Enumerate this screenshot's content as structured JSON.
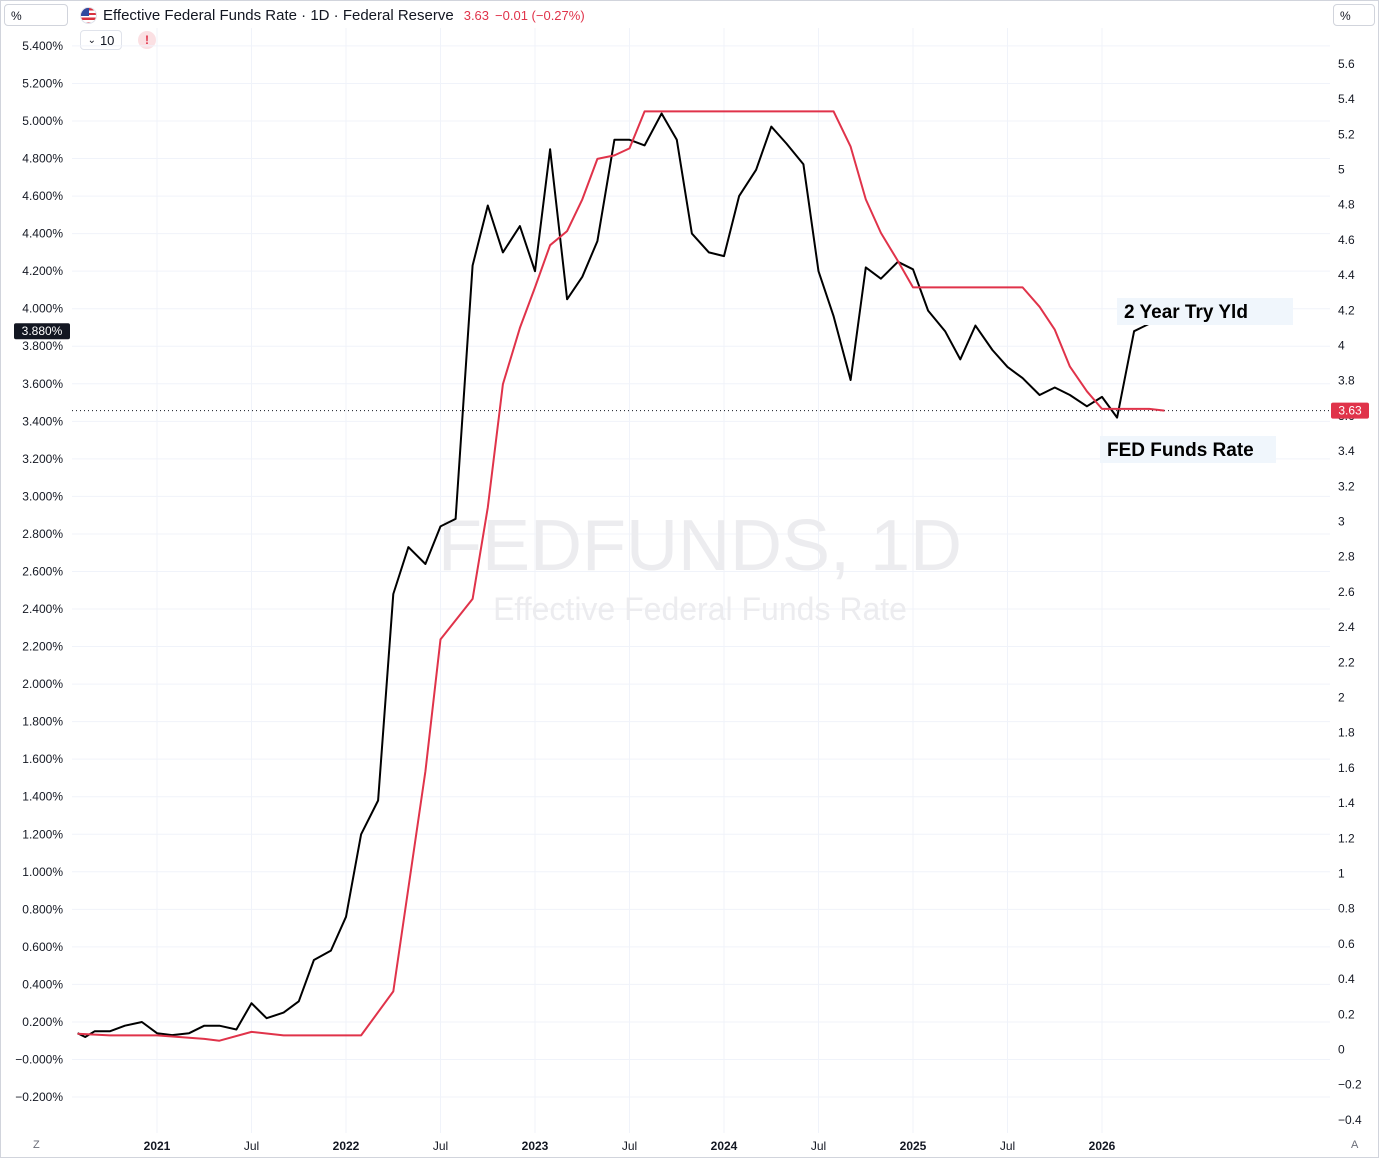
{
  "header": {
    "left_unit": "%",
    "right_unit": "%",
    "title": "Effective Federal Funds Rate · 1D · Federal Reserve",
    "last_value": "3.63",
    "change": "−0.01 (−0.27%)",
    "flag_icon": "us-flag-icon",
    "indicator_button_label": "10",
    "warning_glyph": "!"
  },
  "corners": {
    "bottom_left": "Z",
    "bottom_right": "A"
  },
  "colors": {
    "fed_funds_line": "#e0334a",
    "treasury_line": "#000000",
    "badge_left": "#131722",
    "badge_right": "#e0334a"
  },
  "chart_data": {
    "type": "line",
    "watermark": {
      "symbol": "FEDFUNDS, 1D",
      "description": "Effective Federal Funds Rate"
    },
    "x_ticks": [
      {
        "label": "2021",
        "t": 2021.0,
        "bold": true
      },
      {
        "label": "Jul",
        "t": 2021.5,
        "bold": false
      },
      {
        "label": "2022",
        "t": 2022.0,
        "bold": true
      },
      {
        "label": "Jul",
        "t": 2022.5,
        "bold": false
      },
      {
        "label": "2023",
        "t": 2023.0,
        "bold": true
      },
      {
        "label": "Jul",
        "t": 2023.5,
        "bold": false
      },
      {
        "label": "2024",
        "t": 2024.0,
        "bold": true
      },
      {
        "label": "Jul",
        "t": 2024.5,
        "bold": false
      },
      {
        "label": "2025",
        "t": 2025.0,
        "bold": true
      },
      {
        "label": "Jul",
        "t": 2025.5,
        "bold": false
      },
      {
        "label": "2026",
        "t": 2026.0,
        "bold": true
      }
    ],
    "left_axis": {
      "ylim": [
        -0.2,
        5.4
      ],
      "ticks": [
        "5.400%",
        "5.200%",
        "5.000%",
        "4.800%",
        "4.600%",
        "4.400%",
        "4.200%",
        "4.000%",
        "3.800%",
        "3.600%",
        "3.400%",
        "3.200%",
        "3.000%",
        "2.800%",
        "2.600%",
        "2.400%",
        "2.200%",
        "2.000%",
        "1.800%",
        "1.600%",
        "1.400%",
        "1.200%",
        "1.000%",
        "0.800%",
        "0.600%",
        "0.400%",
        "0.200%",
        "−0.000%",
        "−0.200%"
      ],
      "tick_values": [
        5.4,
        5.2,
        5.0,
        4.8,
        4.6,
        4.4,
        4.2,
        4.0,
        3.8,
        3.6,
        3.4,
        3.2,
        3.0,
        2.8,
        2.6,
        2.4,
        2.2,
        2.0,
        1.8,
        1.6,
        1.4,
        1.2,
        1.0,
        0.8,
        0.6,
        0.4,
        0.2,
        0.0,
        -0.2
      ],
      "badge": "3.880%",
      "badge_value": 3.88
    },
    "right_axis": {
      "ylim": [
        -0.4,
        5.6
      ],
      "ticks": [
        "5.6",
        "5.4",
        "5.2",
        "5",
        "4.8",
        "4.6",
        "4.4",
        "4.2",
        "4",
        "3.8",
        "3.6",
        "3.4",
        "3.2",
        "3",
        "2.8",
        "2.6",
        "2.4",
        "2.2",
        "2",
        "1.8",
        "1.6",
        "1.4",
        "1.2",
        "1",
        "0.8",
        "0.6",
        "0.4",
        "0.2",
        "0",
        "−0.2",
        "−0.4"
      ],
      "tick_values": [
        5.6,
        5.4,
        5.2,
        5.0,
        4.8,
        4.6,
        4.4,
        4.2,
        4.0,
        3.8,
        3.6,
        3.4,
        3.2,
        3.0,
        2.8,
        2.6,
        2.4,
        2.2,
        2.0,
        1.8,
        1.6,
        1.4,
        1.2,
        1.0,
        0.8,
        0.6,
        0.4,
        0.2,
        0.0,
        -0.2,
        -0.4
      ],
      "badge": "3.63",
      "badge_value": 3.63
    },
    "price_line_value": 3.63,
    "series": [
      {
        "name": "2 Year Try Yld",
        "axis": "left",
        "color": "#000000",
        "x": [
          2020.58,
          2020.62,
          2020.67,
          2020.75,
          2020.83,
          2020.92,
          2021.0,
          2021.08,
          2021.17,
          2021.25,
          2021.33,
          2021.42,
          2021.5,
          2021.58,
          2021.67,
          2021.75,
          2021.83,
          2021.92,
          2022.0,
          2022.08,
          2022.17,
          2022.25,
          2022.33,
          2022.42,
          2022.5,
          2022.58,
          2022.67,
          2022.75,
          2022.83,
          2022.92,
          2023.0,
          2023.08,
          2023.17,
          2023.25,
          2023.33,
          2023.42,
          2023.5,
          2023.58,
          2023.67,
          2023.75,
          2023.83,
          2023.92,
          2024.0,
          2024.08,
          2024.17,
          2024.25,
          2024.33,
          2024.42,
          2024.5,
          2024.58,
          2024.67,
          2024.75,
          2024.83,
          2024.92,
          2025.0,
          2025.08,
          2025.17,
          2025.25,
          2025.33,
          2025.42,
          2025.5,
          2025.58,
          2025.67,
          2025.75,
          2025.83,
          2025.92,
          2026.0,
          2026.08,
          2026.17,
          2026.25,
          2026.33
        ],
        "values": [
          0.14,
          0.12,
          0.15,
          0.15,
          0.18,
          0.2,
          0.14,
          0.13,
          0.14,
          0.18,
          0.18,
          0.16,
          0.3,
          0.22,
          0.25,
          0.31,
          0.53,
          0.58,
          0.76,
          1.2,
          1.38,
          2.48,
          2.73,
          2.64,
          2.84,
          2.88,
          4.23,
          4.55,
          4.3,
          4.44,
          4.2,
          4.85,
          4.05,
          4.17,
          4.36,
          4.9,
          4.9,
          4.87,
          5.04,
          4.9,
          4.4,
          4.3,
          4.28,
          4.6,
          4.74,
          4.97,
          4.88,
          4.77,
          4.2,
          3.96,
          3.62,
          4.22,
          4.16,
          4.25,
          4.21,
          3.99,
          3.88,
          3.73,
          3.91,
          3.78,
          3.69,
          3.63,
          3.54,
          3.58,
          3.54,
          3.48,
          3.53,
          3.42,
          3.88,
          3.92,
          3.92
        ]
      },
      {
        "name": "FED Funds Rate",
        "axis": "right",
        "color": "#e0334a",
        "x": [
          2020.58,
          2020.75,
          2021.0,
          2021.25,
          2021.33,
          2021.5,
          2021.67,
          2022.08,
          2022.25,
          2022.42,
          2022.5,
          2022.67,
          2022.75,
          2022.83,
          2022.92,
          2023.0,
          2023.08,
          2023.17,
          2023.25,
          2023.33,
          2023.42,
          2023.5,
          2023.58,
          2024.58,
          2024.67,
          2024.75,
          2024.83,
          2024.92,
          2025.0,
          2025.58,
          2025.67,
          2025.75,
          2025.83,
          2025.92,
          2026.0,
          2026.08,
          2026.25,
          2026.33
        ],
        "values": [
          0.09,
          0.08,
          0.08,
          0.06,
          0.05,
          0.1,
          0.08,
          0.08,
          0.33,
          1.58,
          2.33,
          2.56,
          3.08,
          3.78,
          4.1,
          4.33,
          4.57,
          4.65,
          4.83,
          5.06,
          5.08,
          5.12,
          5.33,
          5.33,
          5.13,
          4.83,
          4.64,
          4.48,
          4.33,
          4.33,
          4.22,
          4.09,
          3.88,
          3.74,
          3.64,
          3.64,
          3.64,
          3.63
        ]
      }
    ],
    "annotations": [
      {
        "text": "2 Year Try Yld",
        "series": "2 Year Try Yld"
      },
      {
        "text": "FED Funds Rate",
        "series": "FED Funds Rate"
      }
    ],
    "grid": true
  }
}
